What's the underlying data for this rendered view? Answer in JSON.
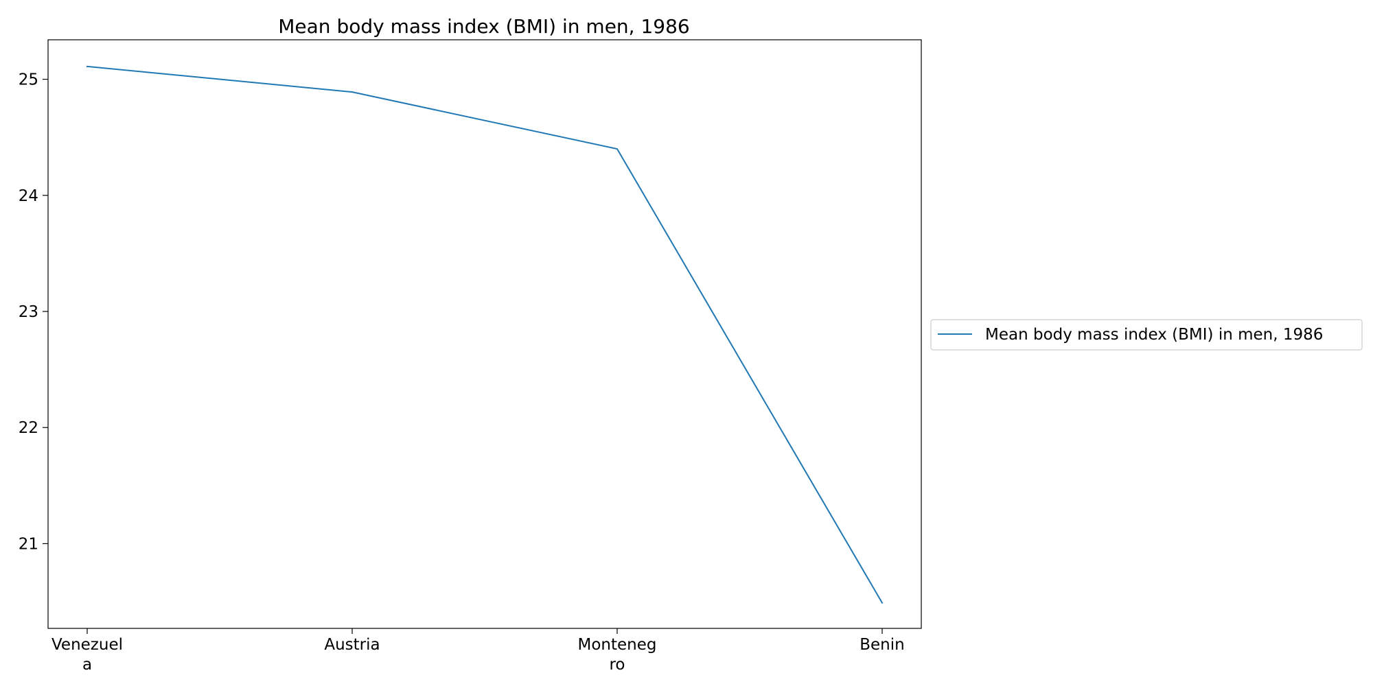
{
  "chart_data": {
    "type": "line",
    "title": "Mean body mass index (BMI) in men, 1986",
    "xlabel": "",
    "ylabel": "",
    "categories": [
      [
        "Venezuel",
        "a"
      ],
      [
        "Austria"
      ],
      [
        "Monteneg",
        "ro"
      ],
      [
        "Benin"
      ]
    ],
    "series": [
      {
        "name": "Mean body mass index (BMI) in men, 1986",
        "values": [
          25.11,
          24.89,
          24.4,
          20.49
        ],
        "color": "#1f77b4"
      }
    ],
    "y_ticks": [
      21,
      22,
      23,
      24,
      25
    ],
    "ylim": [
      20.27,
      25.34
    ],
    "grid": false,
    "legend_position": "center-right, outside plot"
  }
}
